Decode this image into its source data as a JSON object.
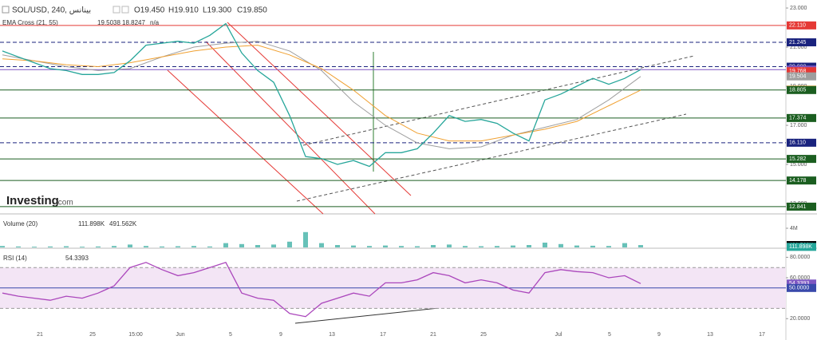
{
  "header": {
    "symbol": "SOL/USD, 240, بينانس",
    "open": "O19.450",
    "high": "H19.910",
    "low": "L19.300",
    "close": "C19.850"
  },
  "logo": "Investing",
  "logo_suffix": ".com",
  "x_labels": [
    "21",
    "25",
    "15:00",
    "Jun",
    "5",
    "9",
    "13",
    "17",
    "21",
    "25",
    "Jul",
    "5",
    "9",
    "13",
    "17"
  ],
  "chart_data": [
    {
      "type": "line",
      "title": "EMA Cross (21, 55)",
      "ema_note": "n/a",
      "ylim": [
        12.47,
        23.41
      ],
      "yticks": [
        {
          "value": 13,
          "label": "13.000"
        },
        {
          "value": 15,
          "label": "15.000"
        },
        {
          "value": 17,
          "label": "17.000"
        },
        {
          "value": 19,
          "label": "19.000"
        },
        {
          "value": 21,
          "label": "21.000"
        },
        {
          "value": 23,
          "label": "23.000"
        }
      ],
      "color": "#26a69a",
      "values": [
        20.8,
        20.5,
        20.2,
        19.9,
        19.8,
        19.6,
        19.6,
        19.7,
        20.3,
        21.1,
        21.2,
        21.3,
        21.2,
        21.6,
        22.2,
        20.7,
        19.8,
        19.2,
        17.5,
        15.4,
        15.3,
        15.0,
        15.2,
        14.9,
        15.6,
        15.6,
        15.8,
        16.6,
        17.5,
        17.2,
        17.3,
        17.1,
        16.6,
        16.2,
        18.3,
        18.6,
        19.0,
        19.4,
        19.1,
        19.4,
        19.85
      ],
      "series": [
        {
          "color": "#9e9e9e",
          "last_value": "19.5038",
          "values": [
            20.6,
            20.3,
            20.0,
            19.8,
            19.9,
            20.5,
            21.0,
            21.2,
            21.3,
            20.8,
            19.8,
            18.2,
            17.0,
            16.1,
            15.8,
            15.9,
            16.5,
            16.9,
            17.3,
            18.3,
            19.5
          ]
        },
        {
          "color": "#f0a030",
          "last_value": "18.8247",
          "values": [
            20.4,
            20.3,
            20.1,
            20.0,
            20.2,
            20.5,
            20.8,
            21.0,
            21.1,
            20.6,
            19.9,
            18.8,
            17.5,
            16.6,
            16.2,
            16.2,
            16.5,
            16.8,
            17.2,
            18.0,
            18.8
          ]
        }
      ],
      "levels": [
        {
          "value": 22.11,
          "label": "22.110",
          "color": "#e53935",
          "style": "solid"
        },
        {
          "value": 21.245,
          "label": "21.245",
          "color": "#1a237e",
          "style": "dash"
        },
        {
          "value": 20.0,
          "label": "20.000",
          "color": "#1a237e",
          "style": "dash"
        },
        {
          "value": 19.85,
          "label": "19.850",
          "color": "#7e57c2",
          "style": "solid"
        },
        {
          "value": 19.768,
          "label": "19.768",
          "color": "#e53935",
          "style": "none"
        },
        {
          "value": 19.504,
          "label": "19.504",
          "color": "#9e9e9e",
          "style": "none"
        },
        {
          "value": 18.825,
          "label": "18.825",
          "color": "#f0a030",
          "style": "none"
        },
        {
          "value": 18.805,
          "label": "18.805",
          "color": "#1b5e20",
          "style": "solid"
        },
        {
          "value": 17.374,
          "label": "17.374",
          "color": "#1b5e20",
          "style": "solid"
        },
        {
          "value": 16.11,
          "label": "16.110",
          "color": "#1a237e",
          "style": "dash"
        },
        {
          "value": 15.282,
          "label": "15.282",
          "color": "#1b5e20",
          "style": "solid"
        },
        {
          "value": 14.178,
          "label": "14.178",
          "color": "#1b5e20",
          "style": "solid"
        },
        {
          "value": 12.841,
          "label": "12.841",
          "color": "#1b5e20",
          "style": "solid"
        }
      ]
    },
    {
      "type": "bar",
      "title": "Volume (20)",
      "legend_values": [
        "111.898K",
        "491.562K"
      ],
      "color": "#26a69a",
      "ylim": [
        0,
        6670000
      ],
      "yticks": [
        {
          "value": 4000000,
          "label": "4M"
        }
      ],
      "values": [
        300000,
        200000,
        150000,
        200000,
        250000,
        150000,
        200000,
        300000,
        600000,
        300000,
        200000,
        250000,
        300000,
        200000,
        900000,
        700000,
        500000,
        600000,
        1200000,
        3200000,
        900000,
        500000,
        400000,
        300000,
        400000,
        300000,
        250000,
        500000,
        600000,
        300000,
        250000,
        300000,
        400000,
        500000,
        1000000,
        700000,
        400000,
        350000,
        300000,
        900000,
        491562
      ],
      "levels": [
        {
          "value": 491562,
          "label": "491.562K",
          "color": "#000000",
          "style": "none"
        },
        {
          "value": 111898,
          "label": "111.898K",
          "color": "#26a69a",
          "style": "none"
        }
      ]
    },
    {
      "type": "line",
      "title": "RSI (14)",
      "legend_value": "54.3393",
      "color": "#ab47bc",
      "ylim": [
        3.8,
        88.1
      ],
      "band": [
        30,
        70
      ],
      "yticks": [
        {
          "value": 80,
          "label": "80.0000"
        },
        {
          "value": 60,
          "label": "60.0000"
        },
        {
          "value": 20,
          "label": "20.0000"
        }
      ],
      "values": [
        45,
        42,
        40,
        38,
        42,
        40,
        45,
        52,
        70,
        75,
        68,
        62,
        65,
        70,
        75,
        45,
        40,
        38,
        25,
        22,
        35,
        40,
        45,
        42,
        55,
        55,
        58,
        65,
        62,
        55,
        58,
        55,
        48,
        45,
        65,
        68,
        66,
        65,
        60,
        62,
        54.3393
      ],
      "levels": [
        {
          "value": 54.3393,
          "label": "54.3393",
          "color": "#7e57c2",
          "style": "none"
        },
        {
          "value": 50,
          "label": "50.0000",
          "color": "#3949ab",
          "style": "solid"
        }
      ]
    }
  ]
}
